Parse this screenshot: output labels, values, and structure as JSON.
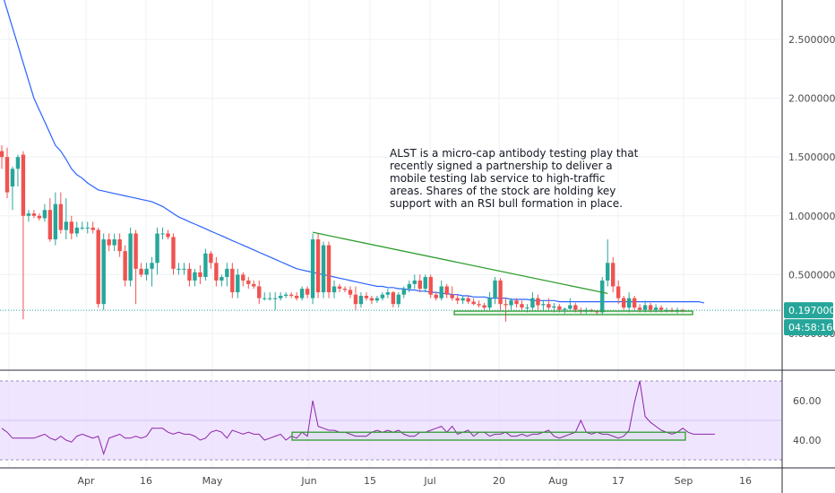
{
  "chart_data": [
    {
      "type": "candlestick",
      "ylim": [
        0,
        2.9
      ],
      "y_ticks": [
        "2.500000",
        "2.000000",
        "1.500000",
        "1.000000",
        "0.500000"
      ],
      "y_tick_values": [
        2.5,
        2.0,
        1.5,
        1.0,
        0.5
      ],
      "hidden_tick_value": 0.0,
      "hidden_tick_label": "0.000000",
      "x_ticks": [
        "Apr",
        "16",
        "May",
        "Jun",
        "15",
        "Jul",
        "20",
        "Aug",
        "17",
        "Sep",
        "16"
      ],
      "grid": true,
      "last_price": "0.197000",
      "countdown": "04:58:16",
      "up_color": "#26a69a",
      "down_color": "#ef5350",
      "ma_color": "#2962ff",
      "trendline_color": "#2e9d2e",
      "annotation": [
        "ALST is a micro-cap antibody testing play that",
        "recently signed a partnership to deliver a",
        "mobile testing lab service to high-traffic",
        "areas. Shares of the stock are holding key",
        "support with an RSI bull formation in place."
      ],
      "candles": [
        [
          1.55,
          1.6,
          1.4,
          1.5
        ],
        [
          1.5,
          1.58,
          1.15,
          1.2
        ],
        [
          1.25,
          1.42,
          1.05,
          1.4
        ],
        [
          1.4,
          1.52,
          1.25,
          1.5
        ],
        [
          1.52,
          1.55,
          0.12,
          1.0
        ],
        [
          1.0,
          1.05,
          0.95,
          1.02
        ],
        [
          1.02,
          1.05,
          0.98,
          1.0
        ],
        [
          1.0,
          1.02,
          0.96,
          0.98
        ],
        [
          0.98,
          1.1,
          0.95,
          1.05
        ],
        [
          1.05,
          1.15,
          0.78,
          0.8
        ],
        [
          0.8,
          1.2,
          0.75,
          1.1
        ],
        [
          1.1,
          1.2,
          0.85,
          0.88
        ],
        [
          0.88,
          1.15,
          0.8,
          0.95
        ],
        [
          0.95,
          1.0,
          0.8,
          0.85
        ],
        [
          0.85,
          0.95,
          0.82,
          0.9
        ],
        [
          0.9,
          0.95,
          0.88,
          0.9
        ],
        [
          0.9,
          0.95,
          0.85,
          0.9
        ],
        [
          0.9,
          0.95,
          0.85,
          0.88
        ],
        [
          0.88,
          0.9,
          0.22,
          0.25
        ],
        [
          0.25,
          0.85,
          0.2,
          0.8
        ],
        [
          0.8,
          0.85,
          0.7,
          0.75
        ],
        [
          0.75,
          0.85,
          0.7,
          0.8
        ],
        [
          0.8,
          0.85,
          0.65,
          0.7
        ],
        [
          0.7,
          0.75,
          0.4,
          0.45
        ],
        [
          0.45,
          0.9,
          0.4,
          0.85
        ],
        [
          0.85,
          0.88,
          0.25,
          0.55
        ],
        [
          0.55,
          0.6,
          0.48,
          0.5
        ],
        [
          0.5,
          0.6,
          0.45,
          0.55
        ],
        [
          0.55,
          0.65,
          0.4,
          0.6
        ],
        [
          0.6,
          0.9,
          0.5,
          0.85
        ],
        [
          0.85,
          0.9,
          0.8,
          0.85
        ],
        [
          0.85,
          0.88,
          0.8,
          0.82
        ],
        [
          0.82,
          0.85,
          0.5,
          0.55
        ],
        [
          0.55,
          0.6,
          0.5,
          0.55
        ],
        [
          0.55,
          0.6,
          0.5,
          0.55
        ],
        [
          0.55,
          0.6,
          0.4,
          0.45
        ],
        [
          0.45,
          0.55,
          0.4,
          0.52
        ],
        [
          0.52,
          0.58,
          0.42,
          0.48
        ],
        [
          0.48,
          0.72,
          0.45,
          0.68
        ],
        [
          0.68,
          0.7,
          0.55,
          0.6
        ],
        [
          0.6,
          0.65,
          0.4,
          0.45
        ],
        [
          0.45,
          0.5,
          0.4,
          0.48
        ],
        [
          0.48,
          0.6,
          0.4,
          0.55
        ],
        [
          0.55,
          0.6,
          0.3,
          0.35
        ],
        [
          0.35,
          0.55,
          0.3,
          0.5
        ],
        [
          0.5,
          0.52,
          0.4,
          0.45
        ],
        [
          0.45,
          0.48,
          0.38,
          0.42
        ],
        [
          0.42,
          0.45,
          0.38,
          0.4
        ],
        [
          0.4,
          0.45,
          0.25,
          0.3
        ],
        [
          0.3,
          0.35,
          0.28,
          0.3
        ],
        [
          0.3,
          0.35,
          0.28,
          0.3
        ],
        [
          0.3,
          0.35,
          0.2,
          0.3
        ],
        [
          0.3,
          0.35,
          0.28,
          0.32
        ],
        [
          0.32,
          0.35,
          0.3,
          0.33
        ],
        [
          0.33,
          0.35,
          0.3,
          0.32
        ],
        [
          0.32,
          0.35,
          0.28,
          0.3
        ],
        [
          0.3,
          0.4,
          0.28,
          0.38
        ],
        [
          0.38,
          0.4,
          0.3,
          0.33
        ],
        [
          0.3,
          0.85,
          0.25,
          0.8
        ],
        [
          0.8,
          0.85,
          0.3,
          0.35
        ],
        [
          0.35,
          0.78,
          0.3,
          0.75
        ],
        [
          0.75,
          0.78,
          0.3,
          0.35
        ],
        [
          0.35,
          0.45,
          0.3,
          0.4
        ],
        [
          0.4,
          0.42,
          0.35,
          0.38
        ],
        [
          0.38,
          0.4,
          0.35,
          0.37
        ],
        [
          0.37,
          0.4,
          0.3,
          0.33
        ],
        [
          0.33,
          0.4,
          0.2,
          0.25
        ],
        [
          0.25,
          0.35,
          0.22,
          0.32
        ],
        [
          0.32,
          0.35,
          0.28,
          0.3
        ],
        [
          0.3,
          0.32,
          0.25,
          0.28
        ],
        [
          0.28,
          0.32,
          0.26,
          0.3
        ],
        [
          0.3,
          0.35,
          0.28,
          0.33
        ],
        [
          0.33,
          0.38,
          0.3,
          0.35
        ],
        [
          0.35,
          0.36,
          0.22,
          0.25
        ],
        [
          0.25,
          0.35,
          0.22,
          0.33
        ],
        [
          0.33,
          0.4,
          0.3,
          0.38
        ],
        [
          0.38,
          0.45,
          0.35,
          0.42
        ],
        [
          0.42,
          0.5,
          0.38,
          0.45
        ],
        [
          0.45,
          0.5,
          0.35,
          0.38
        ],
        [
          0.38,
          0.5,
          0.35,
          0.48
        ],
        [
          0.48,
          0.5,
          0.3,
          0.33
        ],
        [
          0.33,
          0.35,
          0.28,
          0.3
        ],
        [
          0.3,
          0.45,
          0.28,
          0.4
        ],
        [
          0.4,
          0.42,
          0.3,
          0.33
        ],
        [
          0.33,
          0.4,
          0.28,
          0.3
        ],
        [
          0.3,
          0.33,
          0.25,
          0.28
        ],
        [
          0.28,
          0.32,
          0.25,
          0.3
        ],
        [
          0.3,
          0.32,
          0.25,
          0.27
        ],
        [
          0.27,
          0.3,
          0.24,
          0.25
        ],
        [
          0.25,
          0.28,
          0.22,
          0.24
        ],
        [
          0.24,
          0.26,
          0.2,
          0.22
        ],
        [
          0.22,
          0.35,
          0.2,
          0.3
        ],
        [
          0.3,
          0.48,
          0.25,
          0.45
        ],
        [
          0.45,
          0.47,
          0.2,
          0.25
        ],
        [
          0.25,
          0.3,
          0.1,
          0.24
        ],
        [
          0.24,
          0.3,
          0.2,
          0.28
        ],
        [
          0.28,
          0.3,
          0.22,
          0.25
        ],
        [
          0.25,
          0.28,
          0.2,
          0.22
        ],
        [
          0.22,
          0.25,
          0.18,
          0.22
        ],
        [
          0.22,
          0.35,
          0.2,
          0.3
        ],
        [
          0.3,
          0.33,
          0.2,
          0.24
        ],
        [
          0.24,
          0.28,
          0.2,
          0.25
        ],
        [
          0.25,
          0.3,
          0.2,
          0.22
        ],
        [
          0.22,
          0.26,
          0.18,
          0.23
        ],
        [
          0.23,
          0.25,
          0.18,
          0.2
        ],
        [
          0.2,
          0.22,
          0.17,
          0.21
        ],
        [
          0.21,
          0.3,
          0.2,
          0.24
        ],
        [
          0.24,
          0.26,
          0.18,
          0.2
        ],
        [
          0.2,
          0.22,
          0.17,
          0.19
        ],
        [
          0.19,
          0.22,
          0.17,
          0.2
        ],
        [
          0.2,
          0.21,
          0.18,
          0.19
        ],
        [
          0.19,
          0.2,
          0.16,
          0.18
        ],
        [
          0.18,
          0.48,
          0.16,
          0.45
        ],
        [
          0.45,
          0.8,
          0.4,
          0.6
        ],
        [
          0.6,
          0.65,
          0.35,
          0.4
        ],
        [
          0.4,
          0.45,
          0.25,
          0.3
        ],
        [
          0.3,
          0.32,
          0.2,
          0.22
        ],
        [
          0.22,
          0.35,
          0.18,
          0.3
        ],
        [
          0.3,
          0.32,
          0.2,
          0.22
        ],
        [
          0.22,
          0.25,
          0.18,
          0.2
        ],
        [
          0.2,
          0.28,
          0.18,
          0.24
        ],
        [
          0.24,
          0.26,
          0.18,
          0.2
        ],
        [
          0.2,
          0.25,
          0.18,
          0.22
        ],
        [
          0.22,
          0.24,
          0.18,
          0.2
        ],
        [
          0.2,
          0.22,
          0.18,
          0.2
        ],
        [
          0.2,
          0.22,
          0.18,
          0.19
        ],
        [
          0.19,
          0.22,
          0.17,
          0.2
        ],
        [
          0.2,
          0.21,
          0.18,
          0.197
        ]
      ],
      "moving_average": [
        2.9,
        2.75,
        2.6,
        2.45,
        2.3,
        2.15,
        2.0,
        1.9,
        1.8,
        1.7,
        1.6,
        1.55,
        1.48,
        1.4,
        1.35,
        1.32,
        1.28,
        1.25,
        1.22,
        1.21,
        1.2,
        1.19,
        1.18,
        1.17,
        1.16,
        1.15,
        1.14,
        1.13,
        1.12,
        1.1,
        1.08,
        1.05,
        1.02,
        0.99,
        0.97,
        0.95,
        0.93,
        0.91,
        0.89,
        0.87,
        0.85,
        0.83,
        0.81,
        0.79,
        0.77,
        0.75,
        0.73,
        0.71,
        0.69,
        0.67,
        0.65,
        0.63,
        0.61,
        0.59,
        0.57,
        0.55,
        0.54,
        0.53,
        0.52,
        0.51,
        0.5,
        0.49,
        0.48,
        0.47,
        0.46,
        0.45,
        0.44,
        0.43,
        0.42,
        0.41,
        0.4,
        0.4,
        0.39,
        0.39,
        0.38,
        0.38,
        0.37,
        0.37,
        0.36,
        0.36,
        0.35,
        0.35,
        0.34,
        0.34,
        0.33,
        0.33,
        0.32,
        0.32,
        0.31,
        0.31,
        0.31,
        0.3,
        0.3,
        0.3,
        0.3,
        0.29,
        0.29,
        0.29,
        0.29,
        0.28,
        0.28,
        0.28,
        0.28,
        0.28,
        0.27,
        0.27,
        0.27,
        0.27,
        0.27,
        0.27,
        0.27,
        0.27,
        0.27,
        0.27,
        0.27,
        0.27,
        0.27,
        0.27,
        0.27,
        0.27,
        0.27,
        0.27,
        0.27,
        0.27,
        0.27,
        0.27,
        0.27,
        0.27,
        0.27,
        0.27,
        0.27,
        0.26
      ],
      "trendline": [
        [
          58,
          0.86
        ],
        [
          113,
          0.34
        ]
      ],
      "support_zone": [
        0.16,
        0.19
      ]
    },
    {
      "type": "line",
      "ylim": [
        25,
        75
      ],
      "y_ticks": [
        "60.00",
        "40.00"
      ],
      "y_tick_values": [
        60,
        40
      ],
      "band": [
        30,
        70
      ],
      "midline": 50,
      "band_color": "#e9dcff",
      "line_color": "#8e24aa",
      "support_zone": [
        40,
        44
      ],
      "values": [
        46,
        44,
        41,
        41,
        41,
        41,
        41,
        42,
        43,
        41,
        40,
        42,
        40,
        39,
        42,
        43,
        42,
        41,
        42,
        33,
        41,
        42,
        43,
        41,
        41,
        42,
        41,
        42,
        46,
        46,
        46,
        44,
        43,
        44,
        43,
        43,
        42,
        40,
        41,
        44,
        45,
        44,
        41,
        45,
        44,
        43,
        44,
        43,
        43,
        40,
        41,
        42,
        43,
        40,
        42,
        41,
        44,
        42,
        60,
        47,
        46,
        45,
        45,
        44,
        44,
        43,
        42,
        42,
        42,
        44,
        45,
        44,
        45,
        44,
        45,
        43,
        42,
        42,
        44,
        44,
        45,
        46,
        47,
        44,
        47,
        43,
        44,
        45,
        42,
        44,
        44,
        42,
        43,
        43,
        44,
        42,
        42,
        43,
        42,
        43,
        43,
        44,
        45,
        42,
        41,
        42,
        43,
        44,
        50,
        44,
        43,
        44,
        43,
        43,
        42,
        41,
        42,
        45,
        59,
        70,
        52,
        49,
        47,
        45,
        44,
        43,
        44,
        46,
        44,
        43,
        43,
        43,
        43,
        43
      ]
    }
  ]
}
